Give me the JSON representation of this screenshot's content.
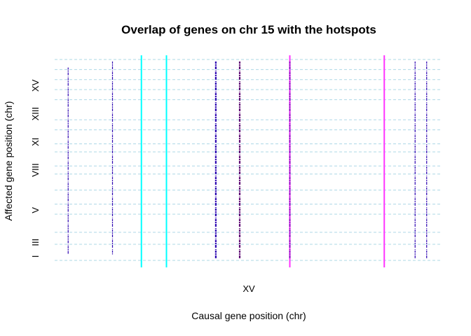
{
  "chart_data": {
    "type": "scatter",
    "title": "Overlap of genes on chr 15 with the hotspots",
    "xlabel": "Causal gene position (chr)",
    "ylabel": "Affected gene position (chr)",
    "x_tick_labels": [
      "XV"
    ],
    "y_tick_labels": [
      "I",
      "III",
      "V",
      "VIII",
      "XI",
      "XIII",
      "XV"
    ],
    "grid": "dashed horizontal lines at chromosome boundaries",
    "colors": {
      "genes": "#2a00b0",
      "hotspot_cyan": "#00ffff",
      "hotspot_magenta": "#ff33ff",
      "grid": "#add8e6"
    },
    "hotspots_cyan_x": [
      0.225,
      0.29
    ],
    "hotspots_magenta_x": [
      0.61,
      0.855
    ],
    "gene_columns": [
      {
        "x": 0.035,
        "y_from": 0.03,
        "y_to": 0.96,
        "color": "#2a00b0",
        "width": 1.2
      },
      {
        "x": 0.15,
        "y_from": 0.03,
        "y_to": 0.99,
        "color": "#2a00b0",
        "width": 1.2
      },
      {
        "x": 0.418,
        "y_from": 0.01,
        "y_to": 0.99,
        "color": "#2a00b0",
        "width": 2.2
      },
      {
        "x": 0.48,
        "y_from": 0.01,
        "y_to": 0.99,
        "color": "#5a0070",
        "width": 2.2
      },
      {
        "x": 0.61,
        "y_from": 0.01,
        "y_to": 0.99,
        "color": "#8a00c0",
        "width": 2.0
      },
      {
        "x": 0.935,
        "y_from": 0.01,
        "y_to": 0.99,
        "color": "#2a00b0",
        "width": 1.2
      },
      {
        "x": 0.965,
        "y_from": 0.01,
        "y_to": 0.99,
        "color": "#2a00b0",
        "width": 1.2
      }
    ],
    "chromosome_boundaries": [
      0.0,
      0.08,
      0.14,
      0.23,
      0.28,
      0.35,
      0.43,
      0.47,
      0.54,
      0.58,
      0.65,
      0.7,
      0.8,
      0.85,
      0.9,
      0.95,
      1.0
    ]
  }
}
